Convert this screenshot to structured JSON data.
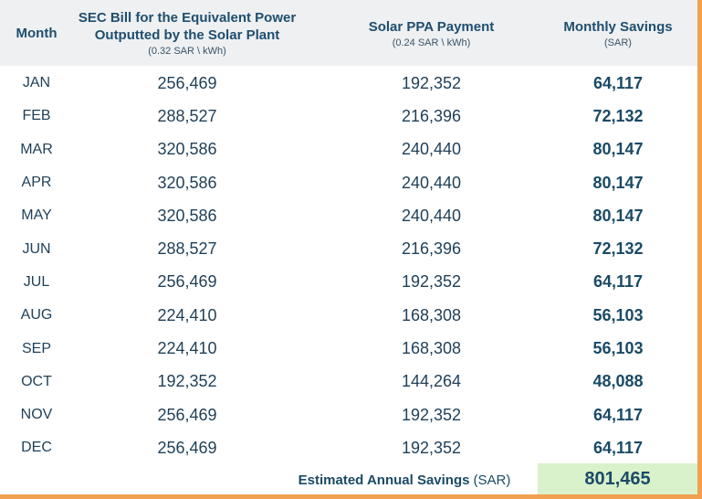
{
  "headers": {
    "month": "Month",
    "sec_title": "SEC Bill for the Equivalent Power Outputted by the Solar Plant",
    "sec_rate": "(0.32 SAR \\ kWh)",
    "ppa_title": "Solar PPA Payment",
    "ppa_rate": "(0.24 SAR \\ kWh)",
    "savings_title": "Monthly Savings",
    "savings_unit": "(SAR)"
  },
  "rows": [
    {
      "month": "JAN",
      "sec": "256,469",
      "ppa": "192,352",
      "savings": "64,117"
    },
    {
      "month": "FEB",
      "sec": "288,527",
      "ppa": "216,396",
      "savings": "72,132"
    },
    {
      "month": "MAR",
      "sec": "320,586",
      "ppa": "240,440",
      "savings": "80,147"
    },
    {
      "month": "APR",
      "sec": "320,586",
      "ppa": "240,440",
      "savings": "80,147"
    },
    {
      "month": "MAY",
      "sec": "320,586",
      "ppa": "240,440",
      "savings": "80,147"
    },
    {
      "month": "JUN",
      "sec": "288,527",
      "ppa": "216,396",
      "savings": "72,132"
    },
    {
      "month": "JUL",
      "sec": "256,469",
      "ppa": "192,352",
      "savings": "64,117"
    },
    {
      "month": "AUG",
      "sec": "224,410",
      "ppa": "168,308",
      "savings": "56,103"
    },
    {
      "month": "SEP",
      "sec": "224,410",
      "ppa": "168,308",
      "savings": "56,103"
    },
    {
      "month": "OCT",
      "sec": "192,352",
      "ppa": "144,264",
      "savings": "48,088"
    },
    {
      "month": "NOV",
      "sec": "256,469",
      "ppa": "192,352",
      "savings": "64,117"
    },
    {
      "month": "DEC",
      "sec": "256,469",
      "ppa": "192,352",
      "savings": "64,117"
    }
  ],
  "total": {
    "label": "Estimated Annual Savings",
    "unit": "(SAR)",
    "value": "801,465"
  },
  "colors": {
    "header_bg": "#eef0f2",
    "text": "#1f4e6e",
    "total_bg": "#d9f2cc",
    "border": "#f0a050"
  }
}
